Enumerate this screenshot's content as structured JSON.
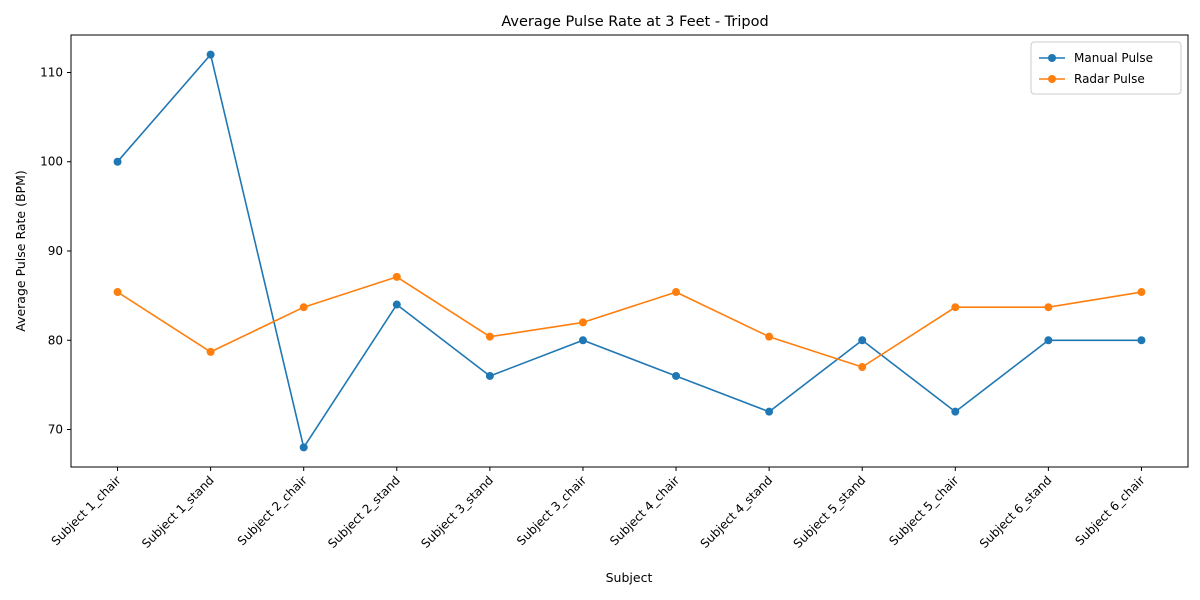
{
  "chart_data": {
    "type": "line",
    "title": "Average Pulse Rate at 3 Feet - Tripod",
    "xlabel": "Subject",
    "ylabel": "Average Pulse Rate (BPM)",
    "categories": [
      "Subject 1_chair",
      "Subject 1_stand",
      "Subject 2_chair",
      "Subject 2_stand",
      "Subject 3_stand",
      "Subject 3_chair",
      "Subject 4_chair",
      "Subject 4_stand",
      "Subject 5_stand",
      "Subject 5_chair",
      "Subject 6_stand",
      "Subject 6_chair"
    ],
    "series": [
      {
        "name": "Manual Pulse",
        "color": "#1f77b4",
        "marker": "circle",
        "values": [
          100,
          112,
          68,
          84,
          76,
          80,
          76,
          72,
          80,
          72,
          80,
          80
        ]
      },
      {
        "name": "Radar Pulse",
        "color": "#ff7f0e",
        "marker": "circle",
        "values": [
          85.4,
          78.7,
          83.7,
          87.1,
          80.4,
          82.0,
          85.4,
          80.4,
          77.0,
          83.7,
          83.7,
          85.4
        ]
      }
    ],
    "ylim": [
      65.8,
      114.2
    ],
    "yticks": [
      70,
      80,
      90,
      100,
      110
    ],
    "grid": false,
    "legend": "top-right"
  }
}
